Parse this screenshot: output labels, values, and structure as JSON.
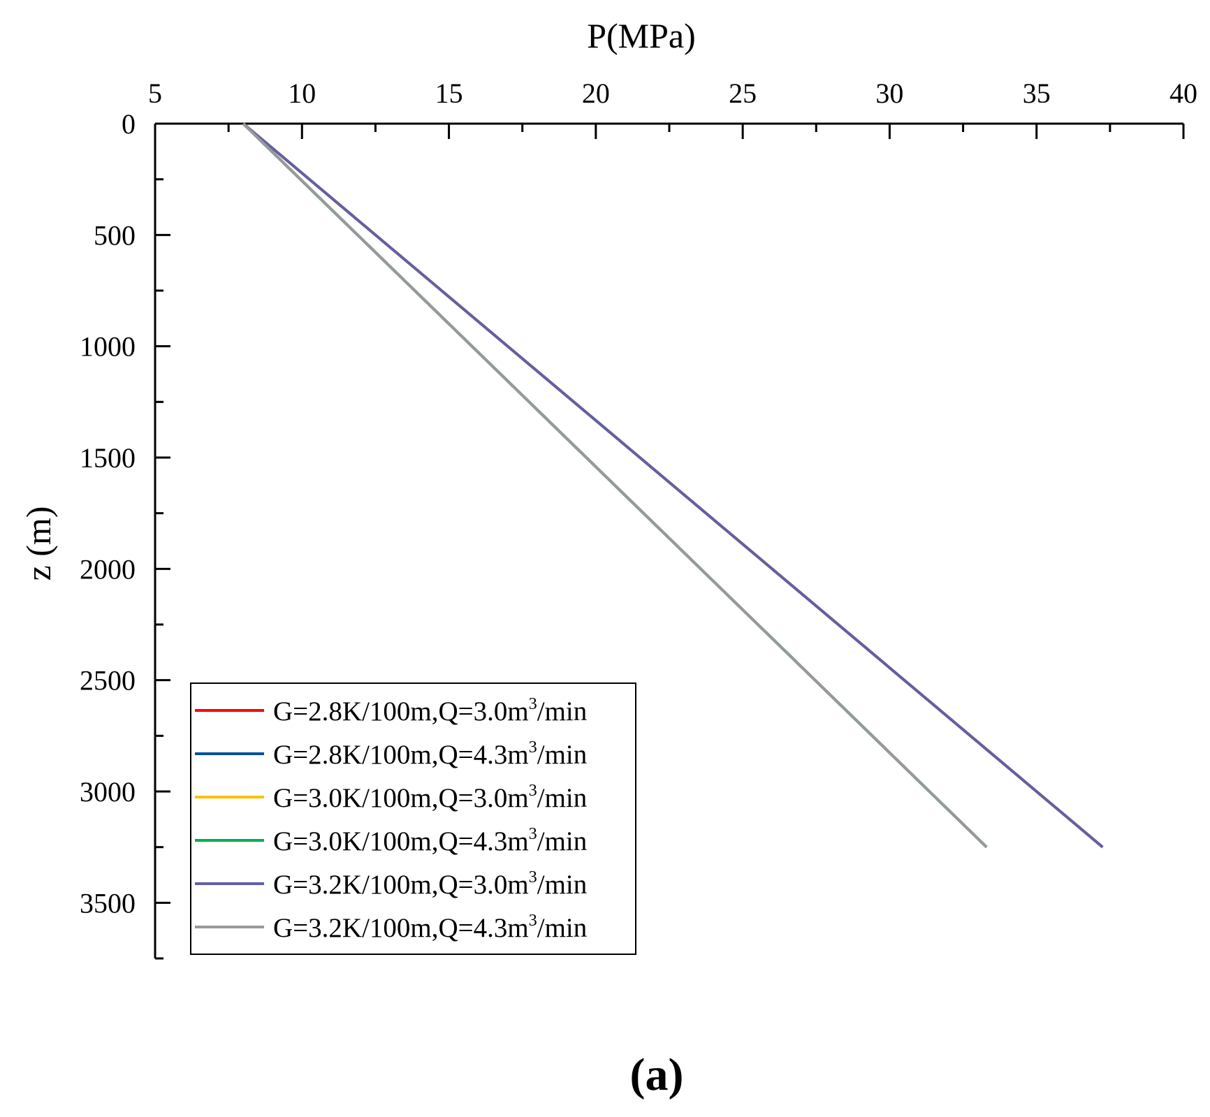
{
  "chart_data": {
    "type": "line",
    "title": "",
    "xlabel": "P(MPa)",
    "ylabel": "z (m)",
    "xlim": [
      5,
      40
    ],
    "ylim": [
      0,
      3750
    ],
    "x_ticks": [
      "5",
      "10",
      "15",
      "20",
      "25",
      "30",
      "35",
      "40"
    ],
    "x_tick_values": [
      5,
      10,
      15,
      20,
      25,
      30,
      35,
      40
    ],
    "y_ticks": [
      "0",
      "500",
      "1000",
      "1500",
      "2000",
      "2500",
      "3000",
      "3500"
    ],
    "y_tick_values": [
      0,
      500,
      1000,
      1500,
      2000,
      2500,
      3000,
      3500
    ],
    "x_axis_position": "top",
    "y_axis_inverted": true,
    "legend_position": "bottom-left",
    "series": [
      {
        "name": "G=2.8K/100m,Q=3.0m3/min",
        "legend_main": "G=2.8K/100m,Q=3.0m",
        "legend_sup": "3",
        "legend_tail": "/min",
        "color": "#ff0000",
        "x": [
          8.0,
          37.25
        ],
        "y": [
          0,
          3250
        ]
      },
      {
        "name": "G=2.8K/100m,Q=4.3m3/min",
        "legend_main": "G=2.8K/100m,Q=4.3m",
        "legend_sup": "3",
        "legend_tail": "/min",
        "color": "#00519c",
        "x": [
          8.0,
          33.3
        ],
        "y": [
          0,
          3250
        ]
      },
      {
        "name": "G=3.0K/100m,Q=3.0m3/min",
        "legend_main": "G=3.0K/100m,Q=3.0m",
        "legend_sup": "3",
        "legend_tail": "/min",
        "color": "#ffc000",
        "x": [
          8.0,
          37.25
        ],
        "y": [
          0,
          3250
        ]
      },
      {
        "name": "G=3.0K/100m,Q=4.3m3/min",
        "legend_main": "G=3.0K/100m,Q=4.3m",
        "legend_sup": "3",
        "legend_tail": "/min",
        "color": "#00b050",
        "x": [
          8.0,
          33.3
        ],
        "y": [
          0,
          3250
        ]
      },
      {
        "name": "G=3.2K/100m,Q=3.0m3/min",
        "legend_main": "G=3.2K/100m,Q=3.0m",
        "legend_sup": "3",
        "legend_tail": "/min",
        "color": "#6060a8",
        "x": [
          8.0,
          37.25
        ],
        "y": [
          0,
          3250
        ]
      },
      {
        "name": "G=3.2K/100m,Q=4.3m3/min",
        "legend_main": "G=3.2K/100m,Q=4.3m",
        "legend_sup": "3",
        "legend_tail": "/min",
        "color": "#999999",
        "x": [
          8.0,
          33.3
        ],
        "y": [
          0,
          3250
        ]
      }
    ]
  },
  "panel_label": "(a)"
}
